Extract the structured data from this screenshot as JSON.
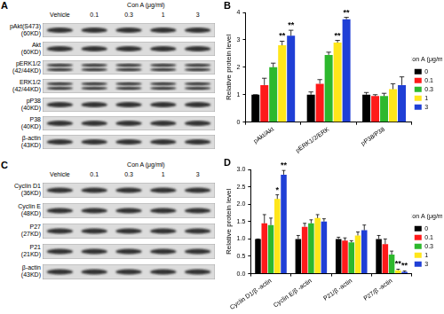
{
  "figure": {
    "blots": [
      {
        "panel": "A",
        "treatment": "Con A (μg/ml)",
        "lanes": [
          "Vehicle",
          "0.1",
          "0.3",
          "1",
          "3"
        ],
        "rows": [
          {
            "protein": "pAkt(S473)",
            "size": "(60KD)"
          },
          {
            "protein": "Akt",
            "size": "(60KD)"
          },
          {
            "protein": "pERK1/2",
            "size": "(42/44KD)"
          },
          {
            "protein": "ERK1/2",
            "size": "(42/44KD)"
          },
          {
            "protein": "pP38",
            "size": "(40KD)"
          },
          {
            "protein": "P38",
            "size": "(40KD)"
          },
          {
            "protein": "β-actin",
            "size": "(43KD)"
          }
        ]
      },
      {
        "panel": "C",
        "treatment": "Con A (μg/ml)",
        "lanes": [
          "Vehicle",
          "0.1",
          "0.3",
          "1",
          "3"
        ],
        "rows": [
          {
            "protein": "Cyclin D1",
            "size": "(36KD)"
          },
          {
            "protein": "Cyclin E",
            "size": "(48KD)"
          },
          {
            "protein": "P27",
            "size": "(27KD)"
          },
          {
            "protein": "P21",
            "size": "(21KD)"
          },
          {
            "protein": "β-actin",
            "size": "(43KD)"
          }
        ]
      }
    ]
  },
  "chart_data": [
    {
      "panel": "B",
      "type": "bar",
      "y_label": "Relative protein level",
      "legend_title": "Con A (μg/ml)",
      "legend": "right",
      "grid": false,
      "categories": [
        "pAkt/Akt",
        "pERK1/2/ERK",
        "pP38/P38"
      ],
      "series": [
        {
          "name": "0",
          "color": "#000000",
          "values": [
            1,
            1,
            1
          ],
          "errors": [
            0,
            0.1,
            0.08
          ]
        },
        {
          "name": "0.1",
          "color": "#ff1a1a",
          "values": [
            1.35,
            1.4,
            0.95
          ],
          "errors": [
            0.25,
            0.15,
            0.05
          ]
        },
        {
          "name": "0.3",
          "color": "#2db82d",
          "values": [
            2.0,
            2.45,
            0.95
          ],
          "errors": [
            0.15,
            0.1,
            0.1
          ]
        },
        {
          "name": "1",
          "color": "#ffe61a",
          "values": [
            2.8,
            2.9,
            1.2
          ],
          "errors": [
            0.15,
            0.08,
            0.2
          ]
        },
        {
          "name": "3",
          "color": "#1f3fd6",
          "values": [
            3.15,
            3.75,
            1.35
          ],
          "errors": [
            0.2,
            0.07,
            0.3
          ]
        }
      ],
      "ylim": [
        0,
        4
      ],
      "yticks": [
        0,
        1,
        2,
        3,
        4
      ],
      "annotations": [
        {
          "category": "pAkt/Akt",
          "series": "1",
          "text": "**"
        },
        {
          "category": "pAkt/Akt",
          "series": "3",
          "text": "**"
        },
        {
          "category": "pERK1/2/ERK",
          "series": "1",
          "text": "**"
        },
        {
          "category": "pERK1/2/ERK",
          "series": "3",
          "text": "**"
        }
      ]
    },
    {
      "panel": "D",
      "type": "bar",
      "y_label": "Relative protein level",
      "legend_title": "Con A (μg/ml)",
      "legend": "right",
      "grid": false,
      "categories": [
        "Cyclin D1/β -actin",
        "Cyclin E/β -actin",
        "P21/β -actin",
        "P27/β -actin"
      ],
      "series": [
        {
          "name": "0",
          "color": "#000000",
          "values": [
            1,
            1,
            1,
            1
          ],
          "errors": [
            0,
            0.1,
            0.05,
            0.1
          ]
        },
        {
          "name": "0.1",
          "color": "#ff1a1a",
          "values": [
            1.45,
            1.35,
            0.95,
            0.85
          ],
          "errors": [
            0.25,
            0.1,
            0.08,
            0.15
          ]
        },
        {
          "name": "0.3",
          "color": "#2db82d",
          "values": [
            1.4,
            1.45,
            0.9,
            0.55
          ],
          "errors": [
            0.2,
            0.1,
            0.05,
            0.1
          ]
        },
        {
          "name": "1",
          "color": "#ffe61a",
          "values": [
            2.15,
            1.6,
            1.1,
            0.1
          ],
          "errors": [
            0.12,
            0.1,
            0.1,
            0.03
          ]
        },
        {
          "name": "3",
          "color": "#1f3fd6",
          "values": [
            2.85,
            1.5,
            1.25,
            0.05
          ],
          "errors": [
            0.12,
            0.08,
            0.15,
            0.03
          ]
        }
      ],
      "ylim": [
        0,
        3
      ],
      "yticks": [
        {
          "value": 0,
          "label": "0.0"
        },
        0.5,
        {
          "value": 1,
          "label": "1.0"
        },
        1.5,
        {
          "value": 2,
          "label": "2.0"
        },
        2.5,
        {
          "value": 3,
          "label": "3.0"
        }
      ],
      "annotations": [
        {
          "category": "Cyclin D1/β -actin",
          "series": "1",
          "text": "*"
        },
        {
          "category": "Cyclin D1/β -actin",
          "series": "3",
          "text": "**"
        },
        {
          "category": "P27/β -actin",
          "series": "1",
          "text": "**"
        },
        {
          "category": "P27/β -actin",
          "series": "3",
          "text": "**"
        }
      ]
    }
  ]
}
